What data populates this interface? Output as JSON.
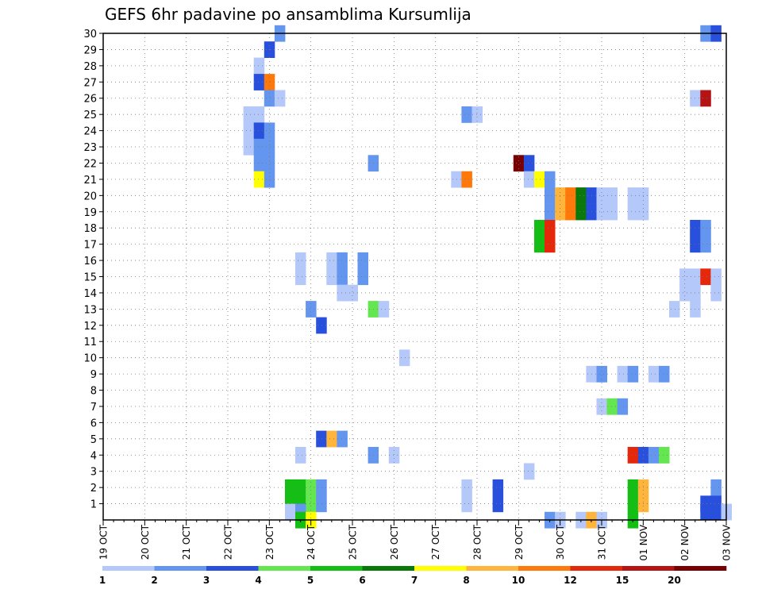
{
  "chart_data": {
    "type": "heatmap",
    "title": "GEFS 6hr padavine po ansamblima Kursumlija",
    "xlabel": "",
    "ylabel": "",
    "x_tick_labels": [
      "19 OCT",
      "20 OCT",
      "21 OCT",
      "22 OCT",
      "23 OCT",
      "24 OCT",
      "25 OCT",
      "26 OCT",
      "27 OCT",
      "28 OCT",
      "29 OCT",
      "30 OCT",
      "31 OCT",
      "01 NOV",
      "02 NOV",
      "03 NOV"
    ],
    "y_tick_labels": [
      "1",
      "2",
      "3",
      "4",
      "5",
      "6",
      "7",
      "8",
      "9",
      "10",
      "11",
      "12",
      "13",
      "14",
      "15",
      "16",
      "17",
      "18",
      "19",
      "20",
      "21",
      "22",
      "23",
      "24",
      "25",
      "26",
      "27",
      "28",
      "29",
      "30"
    ],
    "x_range_steps": [
      0,
      60
    ],
    "y_range": [
      0,
      30
    ],
    "grid": true,
    "colorbar": {
      "labels": [
        "1",
        "2",
        "3",
        "4",
        "5",
        "6",
        "7",
        "8",
        "10",
        "12",
        "15",
        "20"
      ],
      "colors": [
        "#b4c8fa",
        "#6496f0",
        "#2850dc",
        "#64e650",
        "#14be14",
        "#0a780a",
        "#ffff00",
        "#ffb43c",
        "#ff780a",
        "#e6280a",
        "#b41414",
        "#780000"
      ]
    },
    "cells": [
      {
        "x": 17,
        "m": 30,
        "c": 1
      },
      {
        "x": 58,
        "m": 30,
        "c": 1
      },
      {
        "x": 59,
        "m": 30,
        "c": 2
      },
      {
        "x": 16,
        "m": 29,
        "c": 2
      },
      {
        "x": 15,
        "m": 28,
        "c": 0
      },
      {
        "x": 15,
        "m": 27,
        "c": 2
      },
      {
        "x": 16,
        "m": 27,
        "c": 8
      },
      {
        "x": 16,
        "m": 26,
        "c": 1
      },
      {
        "x": 17,
        "m": 26,
        "c": 0
      },
      {
        "x": 57,
        "m": 26,
        "c": 0
      },
      {
        "x": 58,
        "m": 26,
        "c": 10
      },
      {
        "x": 14,
        "m": 25,
        "c": 0
      },
      {
        "x": 15,
        "m": 25,
        "c": 0
      },
      {
        "x": 35,
        "m": 25,
        "c": 1
      },
      {
        "x": 36,
        "m": 25,
        "c": 0
      },
      {
        "x": 14,
        "m": 24,
        "c": 0
      },
      {
        "x": 15,
        "m": 24,
        "c": 2
      },
      {
        "x": 16,
        "m": 24,
        "c": 1
      },
      {
        "x": 14,
        "m": 23,
        "c": 0
      },
      {
        "x": 15,
        "m": 23,
        "c": 1
      },
      {
        "x": 16,
        "m": 23,
        "c": 1
      },
      {
        "x": 15,
        "m": 22,
        "c": 1
      },
      {
        "x": 16,
        "m": 22,
        "c": 1
      },
      {
        "x": 26,
        "m": 22,
        "c": 1
      },
      {
        "x": 40,
        "m": 22,
        "c": 11
      },
      {
        "x": 41,
        "m": 22,
        "c": 2
      },
      {
        "x": 15,
        "m": 21,
        "c": 6
      },
      {
        "x": 16,
        "m": 21,
        "c": 1
      },
      {
        "x": 34,
        "m": 21,
        "c": 0
      },
      {
        "x": 35,
        "m": 21,
        "c": 8
      },
      {
        "x": 41,
        "m": 21,
        "c": 0
      },
      {
        "x": 42,
        "m": 21,
        "c": 6
      },
      {
        "x": 43,
        "m": 21,
        "c": 1
      },
      {
        "x": 43,
        "m": 20,
        "c": 1
      },
      {
        "x": 44,
        "m": 20,
        "c": 7
      },
      {
        "x": 45,
        "m": 20,
        "c": 8
      },
      {
        "x": 46,
        "m": 20,
        "c": 5
      },
      {
        "x": 47,
        "m": 20,
        "c": 2
      },
      {
        "x": 48,
        "m": 20,
        "c": 0
      },
      {
        "x": 49,
        "m": 20,
        "c": 0
      },
      {
        "x": 51,
        "m": 20,
        "c": 0
      },
      {
        "x": 52,
        "m": 20,
        "c": 0
      },
      {
        "x": 43,
        "m": 19,
        "c": 1
      },
      {
        "x": 44,
        "m": 19,
        "c": 7
      },
      {
        "x": 45,
        "m": 19,
        "c": 8
      },
      {
        "x": 46,
        "m": 19,
        "c": 5
      },
      {
        "x": 47,
        "m": 19,
        "c": 2
      },
      {
        "x": 48,
        "m": 19,
        "c": 0
      },
      {
        "x": 49,
        "m": 19,
        "c": 0
      },
      {
        "x": 51,
        "m": 19,
        "c": 0
      },
      {
        "x": 52,
        "m": 19,
        "c": 0
      },
      {
        "x": 42,
        "m": 18,
        "c": 4
      },
      {
        "x": 43,
        "m": 18,
        "c": 9
      },
      {
        "x": 57,
        "m": 18,
        "c": 2
      },
      {
        "x": 58,
        "m": 18,
        "c": 1
      },
      {
        "x": 42,
        "m": 17,
        "c": 4
      },
      {
        "x": 43,
        "m": 17,
        "c": 9
      },
      {
        "x": 57,
        "m": 17,
        "c": 2
      },
      {
        "x": 58,
        "m": 17,
        "c": 1
      },
      {
        "x": 19,
        "m": 16,
        "c": 0
      },
      {
        "x": 22,
        "m": 16,
        "c": 0
      },
      {
        "x": 23,
        "m": 16,
        "c": 1
      },
      {
        "x": 25,
        "m": 16,
        "c": 1
      },
      {
        "x": 19,
        "m": 15,
        "c": 0
      },
      {
        "x": 22,
        "m": 15,
        "c": 0
      },
      {
        "x": 23,
        "m": 15,
        "c": 1
      },
      {
        "x": 25,
        "m": 15,
        "c": 1
      },
      {
        "x": 56,
        "m": 15,
        "c": 0
      },
      {
        "x": 57,
        "m": 15,
        "c": 0
      },
      {
        "x": 58,
        "m": 15,
        "c": 9
      },
      {
        "x": 59,
        "m": 15,
        "c": 0
      },
      {
        "x": 23,
        "m": 14,
        "c": 0
      },
      {
        "x": 24,
        "m": 14,
        "c": 0
      },
      {
        "x": 56,
        "m": 14,
        "c": 0
      },
      {
        "x": 57,
        "m": 14,
        "c": 0
      },
      {
        "x": 59,
        "m": 14,
        "c": 0
      },
      {
        "x": 20,
        "m": 13,
        "c": 1
      },
      {
        "x": 26,
        "m": 13,
        "c": 3
      },
      {
        "x": 27,
        "m": 13,
        "c": 0
      },
      {
        "x": 55,
        "m": 13,
        "c": 0
      },
      {
        "x": 57,
        "m": 13,
        "c": 0
      },
      {
        "x": 21,
        "m": 12,
        "c": 2
      },
      {
        "x": 29,
        "m": 10,
        "c": 0
      },
      {
        "x": 47,
        "m": 9,
        "c": 0
      },
      {
        "x": 48,
        "m": 9,
        "c": 1
      },
      {
        "x": 50,
        "m": 9,
        "c": 0
      },
      {
        "x": 51,
        "m": 9,
        "c": 1
      },
      {
        "x": 53,
        "m": 9,
        "c": 0
      },
      {
        "x": 54,
        "m": 9,
        "c": 1
      },
      {
        "x": 48,
        "m": 7,
        "c": 0
      },
      {
        "x": 49,
        "m": 7,
        "c": 3
      },
      {
        "x": 50,
        "m": 7,
        "c": 1
      },
      {
        "x": 21,
        "m": 5,
        "c": 2
      },
      {
        "x": 22,
        "m": 5,
        "c": 7
      },
      {
        "x": 23,
        "m": 5,
        "c": 1
      },
      {
        "x": 19,
        "m": 4,
        "c": 0
      },
      {
        "x": 26,
        "m": 4,
        "c": 1
      },
      {
        "x": 28,
        "m": 4,
        "c": 0
      },
      {
        "x": 51,
        "m": 4,
        "c": 9
      },
      {
        "x": 52,
        "m": 4,
        "c": 2
      },
      {
        "x": 53,
        "m": 4,
        "c": 1
      },
      {
        "x": 54,
        "m": 4,
        "c": 3
      },
      {
        "x": 41,
        "m": 3,
        "c": 0
      },
      {
        "x": 18,
        "m": 2,
        "c": 4
      },
      {
        "x": 19,
        "m": 2,
        "c": 4
      },
      {
        "x": 20,
        "m": 2,
        "c": 3
      },
      {
        "x": 21,
        "m": 2,
        "c": 1
      },
      {
        "x": 35,
        "m": 2,
        "c": 0
      },
      {
        "x": 38,
        "m": 2,
        "c": 2
      },
      {
        "x": 51,
        "m": 2,
        "c": 4
      },
      {
        "x": 52,
        "m": 2,
        "c": 7
      },
      {
        "x": 59,
        "m": 2,
        "c": 1
      },
      {
        "x": 18,
        "m": 1,
        "c": 4
      },
      {
        "x": 19,
        "m": 1,
        "c": 4
      },
      {
        "x": 20,
        "m": 1,
        "c": 3
      },
      {
        "x": 21,
        "m": 1,
        "c": 1
      },
      {
        "x": 35,
        "m": 1,
        "c": 0
      },
      {
        "x": 38,
        "m": 1,
        "c": 2
      },
      {
        "x": 51,
        "m": 1,
        "c": 4
      },
      {
        "x": 52,
        "m": 1,
        "c": 7
      },
      {
        "x": 58,
        "m": 1,
        "c": 2
      },
      {
        "x": 59,
        "m": 1,
        "c": 2
      },
      {
        "x": 18,
        "m": 0.5,
        "c": 0
      },
      {
        "x": 19,
        "m": 0.5,
        "c": 1
      },
      {
        "x": 58,
        "m": 0.5,
        "c": 2
      },
      {
        "x": 59,
        "m": 0.5,
        "c": 2
      },
      {
        "x": 60,
        "m": 0.5,
        "c": 0
      },
      {
        "x": 19,
        "m": 0,
        "c": 4
      },
      {
        "x": 20,
        "m": 0,
        "c": 6
      },
      {
        "x": 43,
        "m": 0,
        "c": 1
      },
      {
        "x": 44,
        "m": 0,
        "c": 0
      },
      {
        "x": 46,
        "m": 0,
        "c": 0
      },
      {
        "x": 47,
        "m": 0,
        "c": 7
      },
      {
        "x": 48,
        "m": 0,
        "c": 0
      },
      {
        "x": 51,
        "m": 0,
        "c": 4
      }
    ]
  }
}
